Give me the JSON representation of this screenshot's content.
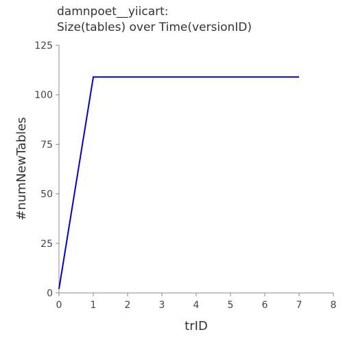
{
  "chart_data": {
    "type": "line",
    "title_lines": [
      "damnpoet__yiicart:",
      "Size(tables) over Time(versionID)"
    ],
    "xlabel": "trID",
    "ylabel": "#numNewTables",
    "xlim": [
      0,
      8
    ],
    "ylim": [
      0,
      125
    ],
    "x_ticks": [
      0,
      1,
      2,
      3,
      4,
      5,
      6,
      7,
      8
    ],
    "y_ticks": [
      0,
      25,
      50,
      75,
      100,
      125
    ],
    "grid": false,
    "series": [
      {
        "color": "#0000cc",
        "x": [
          0,
          1,
          2,
          3,
          4,
          5,
          6,
          7
        ],
        "y": [
          2,
          109,
          109,
          109,
          109,
          109,
          109,
          109
        ]
      }
    ]
  }
}
